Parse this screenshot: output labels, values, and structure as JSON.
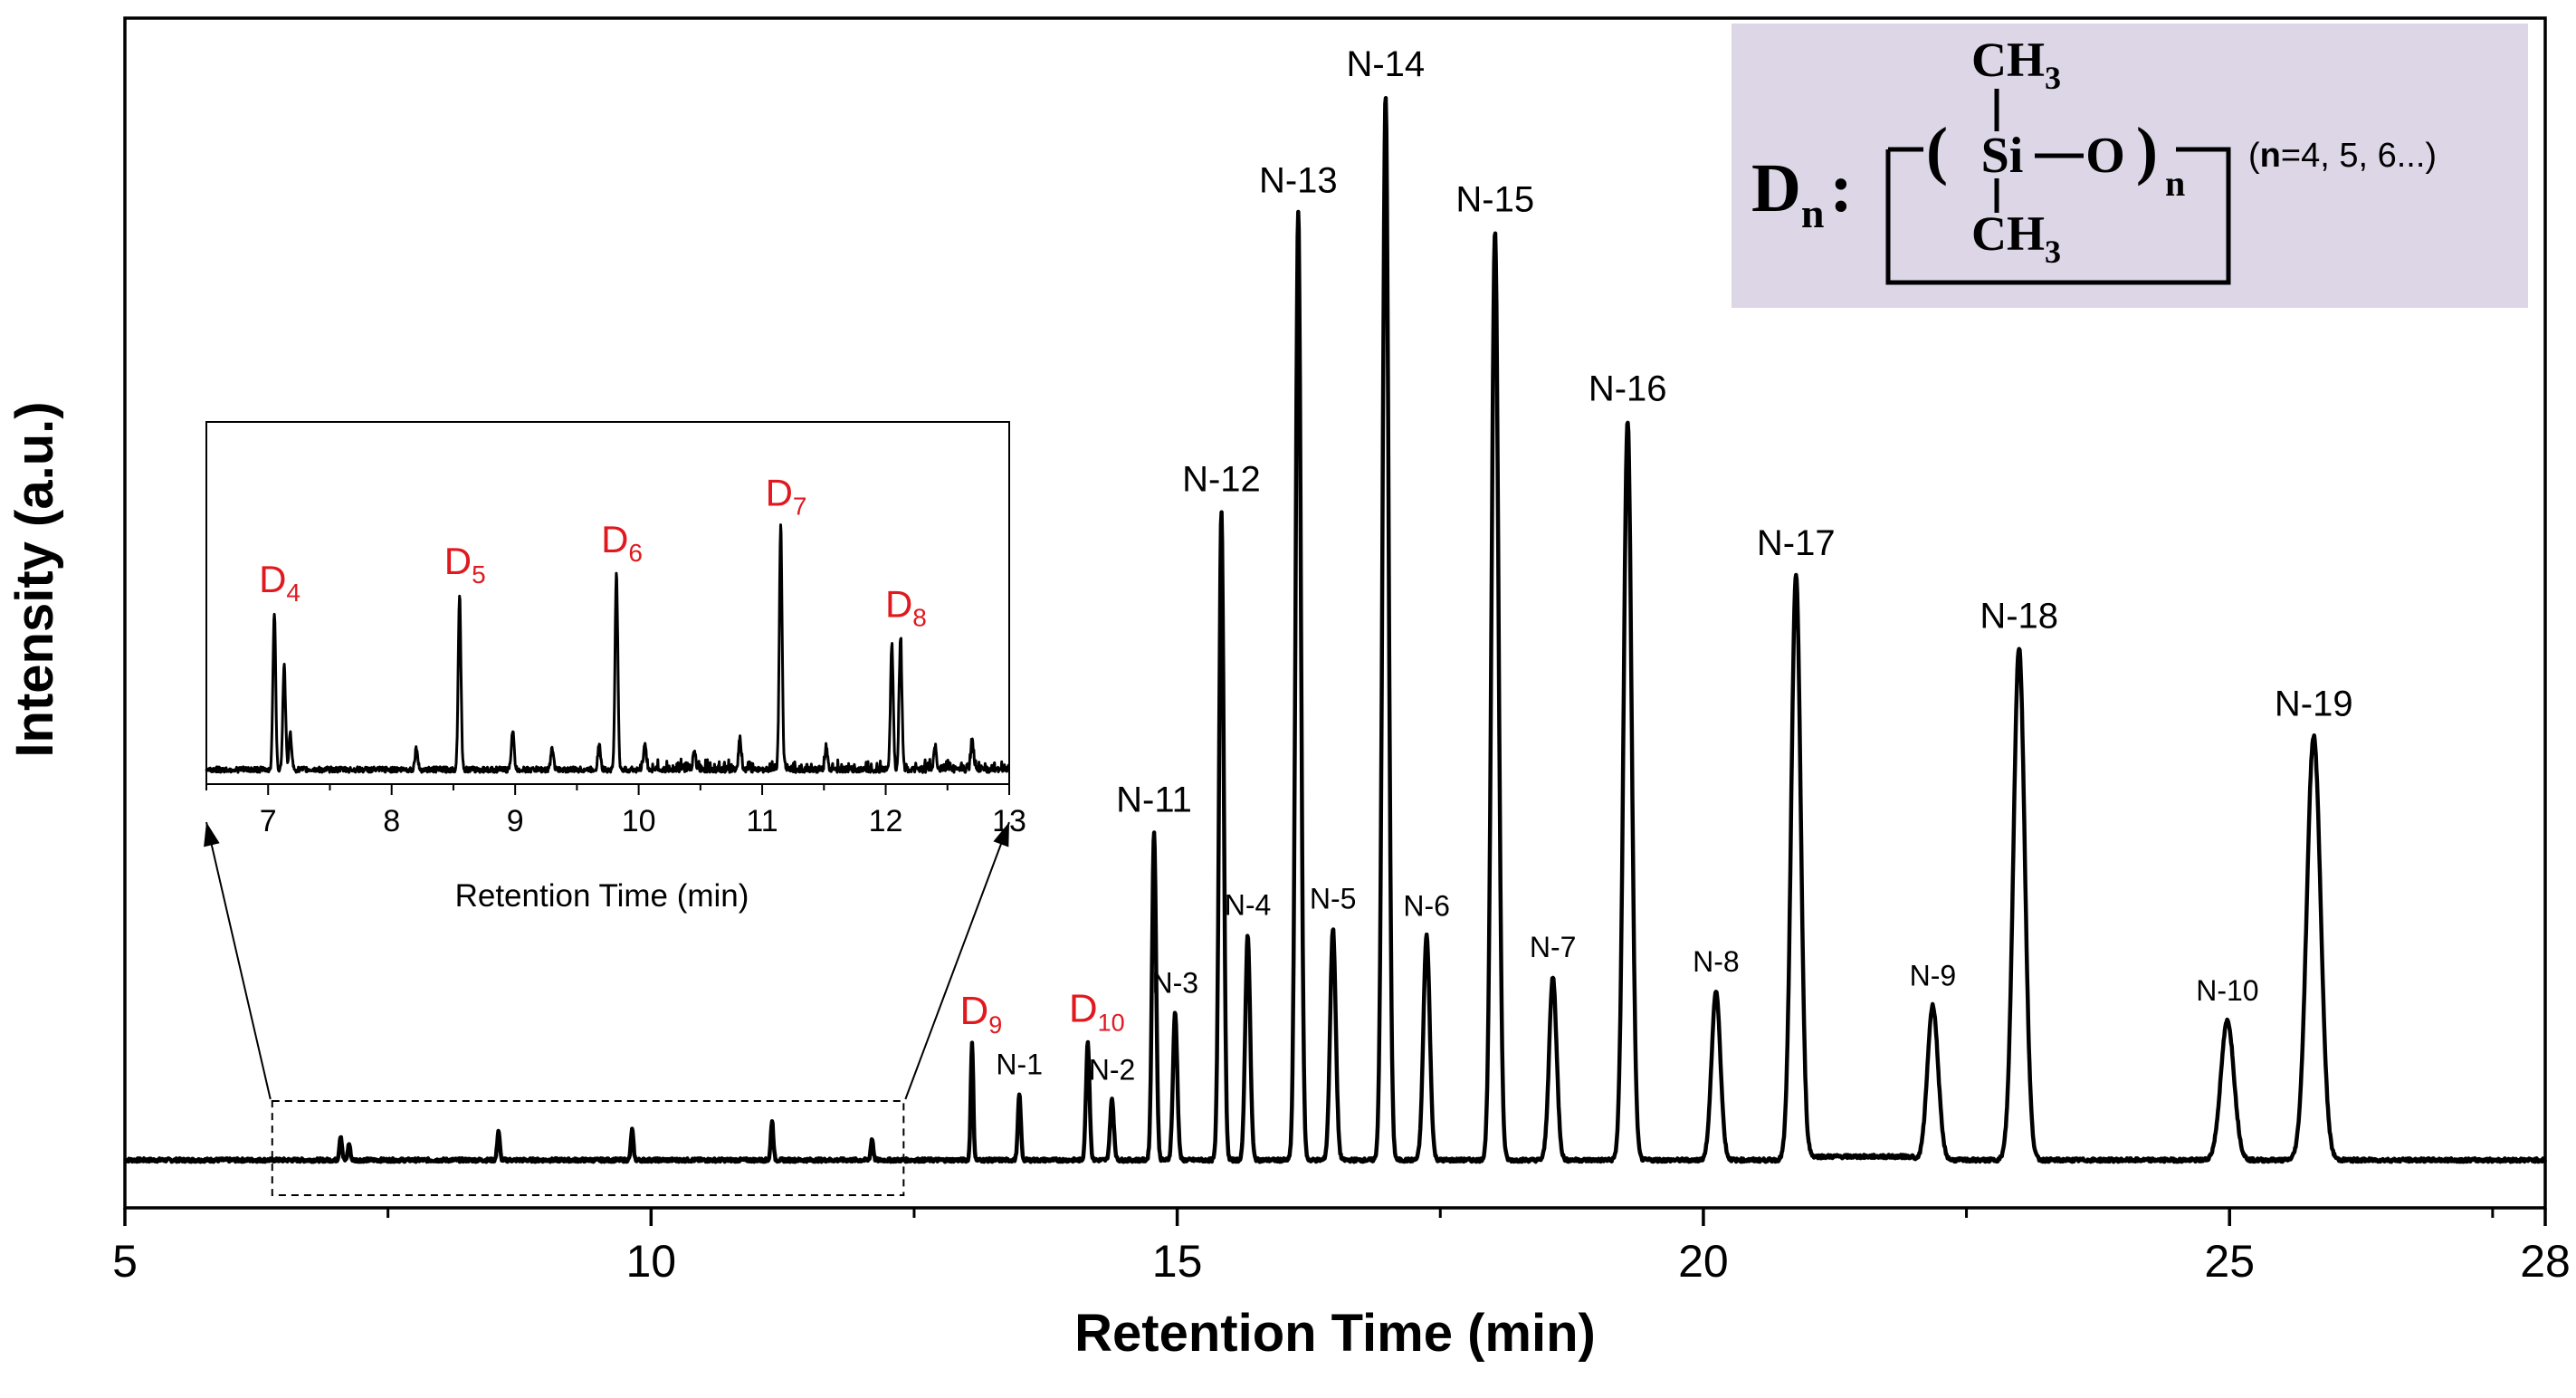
{
  "colors": {
    "line": "#000000",
    "red_label": "#e0191f",
    "formula_box": "#dcd6e6"
  },
  "chart_data": [
    {
      "type": "line",
      "role": "main",
      "xlabel": "Retention Time (min)",
      "ylabel": "Intensity (a.u.)",
      "xlim": [
        5,
        28
      ],
      "ylim": [
        0,
        100
      ],
      "xticks": [
        5,
        10,
        15,
        20,
        25,
        28
      ],
      "xtick_labels": [
        "5",
        "10",
        "15",
        "20",
        "25",
        "28"
      ],
      "baseline": 2.4,
      "peaks": [
        {
          "label": "D9",
          "label_main": "D",
          "label_sub": "9",
          "color": "red",
          "x": 13.05,
          "height": 11.5
        },
        {
          "label": "N-1",
          "color": "black",
          "x": 13.5,
          "height": 6.5
        },
        {
          "label": "D10",
          "label_main": "D",
          "label_sub": "10",
          "color": "red",
          "x": 14.15,
          "height": 11.7
        },
        {
          "label": "N-2",
          "color": "black",
          "x": 14.38,
          "height": 6.0
        },
        {
          "label": "N-11",
          "color": "black",
          "x": 14.78,
          "height": 32.5
        },
        {
          "label": "N-3",
          "color": "black",
          "x": 14.98,
          "height": 14.6
        },
        {
          "label": "N-12",
          "color": "black",
          "x": 15.42,
          "height": 64.2
        },
        {
          "label": "N-4",
          "color": "black",
          "x": 15.67,
          "height": 22.3
        },
        {
          "label": "N-13",
          "color": "black",
          "x": 16.15,
          "height": 93.8
        },
        {
          "label": "N-5",
          "color": "black",
          "x": 16.48,
          "height": 22.9
        },
        {
          "label": "N-14",
          "color": "black",
          "x": 16.98,
          "height": 105.3
        },
        {
          "label": "N-6",
          "color": "black",
          "x": 17.37,
          "height": 22.2
        },
        {
          "label": "N-15",
          "color": "black",
          "x": 18.02,
          "height": 91.9
        },
        {
          "label": "N-7",
          "color": "black",
          "x": 18.57,
          "height": 18.1
        },
        {
          "label": "N-16",
          "color": "black",
          "x": 19.28,
          "height": 73.2
        },
        {
          "label": "N-8",
          "color": "black",
          "x": 20.12,
          "height": 16.7
        },
        {
          "label": "N-17",
          "color": "black",
          "x": 20.88,
          "height": 57.9
        },
        {
          "label": "N-9",
          "color": "black",
          "x": 22.18,
          "height": 15.3
        },
        {
          "label": "N-18",
          "color": "black",
          "x": 23.0,
          "height": 50.7
        },
        {
          "label": "N-10",
          "color": "black",
          "x": 24.98,
          "height": 13.8
        },
        {
          "label": "N-19",
          "color": "black",
          "x": 25.8,
          "height": 42.0
        }
      ],
      "minor_peaks": [
        {
          "x": 7.05,
          "height": 2.4
        },
        {
          "x": 7.13,
          "height": 1.6
        },
        {
          "x": 8.55,
          "height": 2.9
        },
        {
          "x": 9.82,
          "height": 3.0
        },
        {
          "x": 11.15,
          "height": 3.9
        },
        {
          "x": 12.1,
          "height": 2.1
        }
      ],
      "zoom_region": {
        "x_from": 6.4,
        "x_to": 12.4
      }
    },
    {
      "type": "line",
      "role": "inset",
      "xlabel": "Retention Time (min)",
      "xlim": [
        6.5,
        13
      ],
      "xticks": [
        7,
        8,
        9,
        10,
        11,
        12,
        13
      ],
      "xtick_labels": [
        "7",
        "8",
        "9",
        "10",
        "11",
        "12",
        "13"
      ],
      "peaks": [
        {
          "label": "D4",
          "label_main": "D",
          "label_sub": "4",
          "color": "red",
          "x": 7.05,
          "height": 44
        },
        {
          "label": "D5",
          "label_main": "D",
          "label_sub": "5",
          "color": "red",
          "x": 8.55,
          "height": 49
        },
        {
          "label": "D6",
          "label_main": "D",
          "label_sub": "6",
          "color": "red",
          "x": 9.82,
          "height": 55
        },
        {
          "label": "D7",
          "label_main": "D",
          "label_sub": "7",
          "color": "red",
          "x": 11.15,
          "height": 68
        },
        {
          "label": "D8",
          "label_main": "D",
          "label_sub": "8",
          "color": "red",
          "x": 12.12,
          "height": 37
        }
      ],
      "minor_peaks": [
        {
          "x": 7.13,
          "height": 29
        },
        {
          "x": 7.18,
          "height": 10
        },
        {
          "x": 8.2,
          "height": 6
        },
        {
          "x": 8.98,
          "height": 11
        },
        {
          "x": 9.3,
          "height": 6
        },
        {
          "x": 9.68,
          "height": 7
        },
        {
          "x": 10.05,
          "height": 7
        },
        {
          "x": 10.45,
          "height": 5
        },
        {
          "x": 10.82,
          "height": 8
        },
        {
          "x": 11.52,
          "height": 6
        },
        {
          "x": 12.05,
          "height": 35
        },
        {
          "x": 12.4,
          "height": 6
        },
        {
          "x": 12.7,
          "height": 8
        }
      ]
    }
  ],
  "formula": {
    "prefix_main": "D",
    "prefix_sub": "n",
    "colon": ":",
    "ch3_top": "CH",
    "ch3_top_sub": "3",
    "si": "Si",
    "o": "O",
    "ch3_bottom": "CH",
    "ch3_bottom_sub": "3",
    "repeat_sub": "n",
    "note_prefix": "(",
    "note_bold": "n",
    "note_rest": "=4, 5, 6...)"
  }
}
